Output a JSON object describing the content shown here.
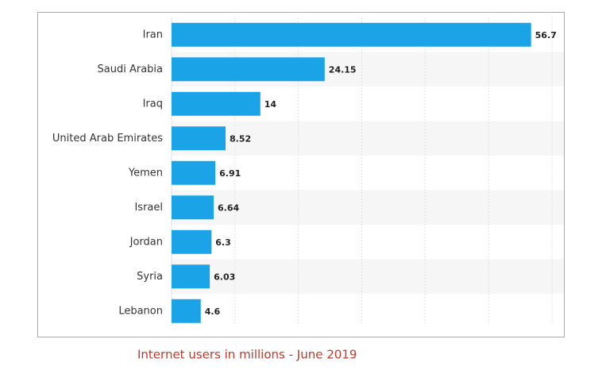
{
  "chart_data": {
    "type": "bar",
    "orientation": "horizontal",
    "categories": [
      "Iran",
      "Saudi Arabia",
      "Iraq",
      "United Arab Emirates",
      "Yemen",
      "Israel",
      "Jordan",
      "Syria",
      "Lebanon"
    ],
    "values": [
      56.7,
      24.15,
      14,
      8.52,
      6.91,
      6.64,
      6.3,
      6.03,
      4.6
    ],
    "color": "#1aa3e6",
    "xlim": [
      0,
      60
    ],
    "xticks": [
      0,
      10,
      20,
      30,
      40,
      50,
      60
    ],
    "grid": true,
    "caption": "Internet users in millions - June 2019"
  }
}
